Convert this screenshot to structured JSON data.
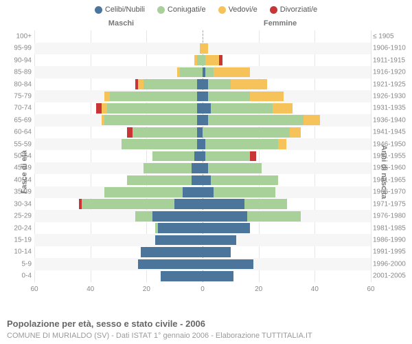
{
  "legend": [
    {
      "label": "Celibi/Nubili",
      "color": "#4b759a"
    },
    {
      "label": "Coniugati/e",
      "color": "#a8d199"
    },
    {
      "label": "Vedovi/e",
      "color": "#f6c35a"
    },
    {
      "label": "Divorziati/e",
      "color": "#c93434"
    }
  ],
  "headers": {
    "left": "Maschi",
    "right": "Femmine"
  },
  "y_title_left": "Fasce di età",
  "y_title_right": "Anni di nascita",
  "x_axis": {
    "max": 60,
    "ticks": [
      60,
      40,
      20,
      0,
      20,
      40,
      60
    ]
  },
  "styling": {
    "grid_color": "#e6e6e6",
    "band_color": "#f6f6f6",
    "background": "#ffffff",
    "axis_font_size": 10,
    "label_color": "#888"
  },
  "rows": [
    {
      "age": "0-4",
      "birth": "2001-2005",
      "m": [
        15,
        0,
        0,
        0
      ],
      "f": [
        11,
        0,
        0,
        0
      ]
    },
    {
      "age": "5-9",
      "birth": "1996-2000",
      "m": [
        23,
        0,
        0,
        0
      ],
      "f": [
        18,
        0,
        0,
        0
      ]
    },
    {
      "age": "10-14",
      "birth": "1991-1995",
      "m": [
        22,
        0,
        0,
        0
      ],
      "f": [
        10,
        0,
        0,
        0
      ]
    },
    {
      "age": "15-19",
      "birth": "1986-1990",
      "m": [
        17,
        0,
        0,
        0
      ],
      "f": [
        12,
        0,
        0,
        0
      ]
    },
    {
      "age": "20-24",
      "birth": "1981-1985",
      "m": [
        16,
        1,
        0,
        0
      ],
      "f": [
        17,
        0,
        0,
        0
      ]
    },
    {
      "age": "25-29",
      "birth": "1976-1980",
      "m": [
        18,
        6,
        0,
        0
      ],
      "f": [
        16,
        19,
        0,
        0
      ]
    },
    {
      "age": "30-34",
      "birth": "1971-1975",
      "m": [
        10,
        33,
        0,
        1
      ],
      "f": [
        15,
        15,
        0,
        0
      ]
    },
    {
      "age": "35-39",
      "birth": "1966-1970",
      "m": [
        7,
        28,
        0,
        0
      ],
      "f": [
        4,
        22,
        0,
        0
      ]
    },
    {
      "age": "40-44",
      "birth": "1961-1965",
      "m": [
        4,
        23,
        0,
        0
      ],
      "f": [
        3,
        24,
        0,
        0
      ]
    },
    {
      "age": "45-49",
      "birth": "1956-1960",
      "m": [
        4,
        17,
        0,
        0
      ],
      "f": [
        2,
        19,
        0,
        0
      ]
    },
    {
      "age": "50-54",
      "birth": "1951-1955",
      "m": [
        3,
        15,
        0,
        0
      ],
      "f": [
        1,
        16,
        0,
        2
      ]
    },
    {
      "age": "55-59",
      "birth": "1946-1950",
      "m": [
        2,
        27,
        0,
        0
      ],
      "f": [
        1,
        26,
        3,
        0
      ]
    },
    {
      "age": "60-64",
      "birth": "1941-1945",
      "m": [
        2,
        23,
        0,
        2
      ],
      "f": [
        0,
        31,
        4,
        0
      ]
    },
    {
      "age": "65-69",
      "birth": "1936-1940",
      "m": [
        2,
        33,
        1,
        0
      ],
      "f": [
        2,
        34,
        6,
        0
      ]
    },
    {
      "age": "70-74",
      "birth": "1931-1935",
      "m": [
        2,
        32,
        2,
        2
      ],
      "f": [
        3,
        22,
        7,
        0
      ]
    },
    {
      "age": "75-79",
      "birth": "1926-1930",
      "m": [
        2,
        31,
        2,
        0
      ],
      "f": [
        2,
        15,
        12,
        0
      ]
    },
    {
      "age": "80-84",
      "birth": "1921-1925",
      "m": [
        2,
        19,
        2,
        1
      ],
      "f": [
        2,
        8,
        13,
        0
      ]
    },
    {
      "age": "85-89",
      "birth": "1916-1920",
      "m": [
        0,
        8,
        1,
        0
      ],
      "f": [
        1,
        3,
        13,
        0
      ]
    },
    {
      "age": "90-94",
      "birth": "1911-1915",
      "m": [
        0,
        2,
        1,
        0
      ],
      "f": [
        0,
        1,
        5,
        1
      ]
    },
    {
      "age": "95-99",
      "birth": "1906-1910",
      "m": [
        0,
        0,
        1,
        0
      ],
      "f": [
        0,
        0,
        2,
        0
      ]
    },
    {
      "age": "100+",
      "birth": "≤ 1905",
      "m": [
        0,
        0,
        0,
        0
      ],
      "f": [
        0,
        0,
        0,
        0
      ]
    }
  ],
  "title": "Popolazione per età, sesso e stato civile - 2006",
  "subtitle": "COMUNE DI MURIALDO (SV) - Dati ISTAT 1° gennaio 2006 - Elaborazione TUTTITALIA.IT"
}
